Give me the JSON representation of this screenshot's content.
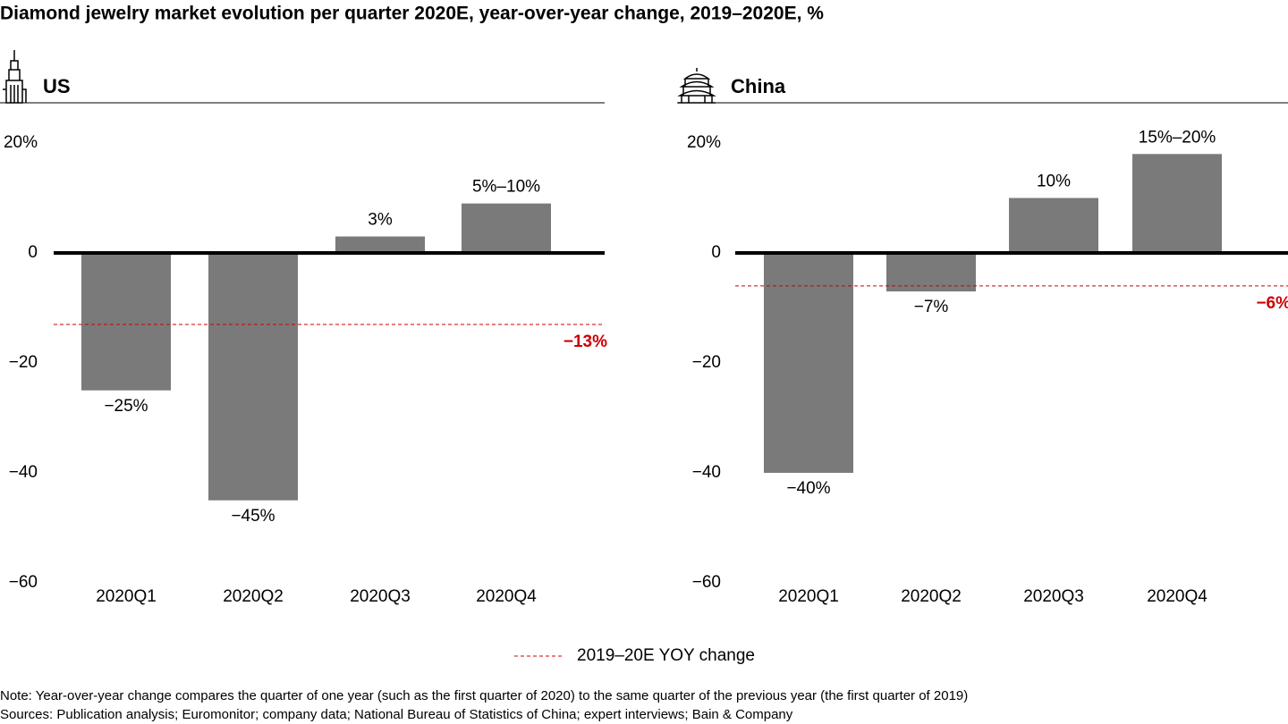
{
  "title": "Diamond jewelry market evolution per quarter 2020E, year-over-year change, 2019–2020E, %",
  "legend_label": "2019–20E YOY change",
  "note": "Note: Year-over-year change compares the quarter of one year (such as the first quarter of 2020) to the same quarter of the previous year (the first quarter of 2019)",
  "source": "Sources: Publication analysis; Euromonitor; company data; National Bureau of Statistics of China; expert interviews; Bain & Company",
  "chart_data": [
    {
      "type": "bar",
      "title": "US",
      "categories": [
        "2020Q1",
        "2020Q2",
        "2020Q3",
        "2020Q4"
      ],
      "values": [
        -25,
        -45,
        3,
        9
      ],
      "value_labels": [
        "−25%",
        "−45%",
        "3%",
        "5%–10%"
      ],
      "color": "#7a7a7a",
      "ylim": [
        -60,
        20
      ],
      "yticks": [
        {
          "value": 20,
          "label": "20%"
        },
        0,
        {
          "value": -20,
          "label": "−20"
        },
        {
          "value": -40,
          "label": "−40"
        },
        {
          "value": -60,
          "label": "−60"
        }
      ],
      "reference": {
        "value": -13,
        "label": "−13%",
        "color": "#cc0000"
      }
    },
    {
      "type": "bar",
      "title": "China",
      "categories": [
        "2020Q1",
        "2020Q2",
        "2020Q3",
        "2020Q4"
      ],
      "values": [
        -40,
        -7,
        10,
        18
      ],
      "value_labels": [
        "−40%",
        "−7%",
        "10%",
        "15%–20%"
      ],
      "color": "#7a7a7a",
      "ylim": [
        -60,
        20
      ],
      "yticks": [
        {
          "value": 20,
          "label": "20%"
        },
        0,
        {
          "value": -20,
          "label": "−20"
        },
        {
          "value": -40,
          "label": "−40"
        },
        {
          "value": -60,
          "label": "−60"
        }
      ],
      "reference": {
        "value": -6,
        "label": "−6%",
        "color": "#cc0000"
      }
    }
  ]
}
